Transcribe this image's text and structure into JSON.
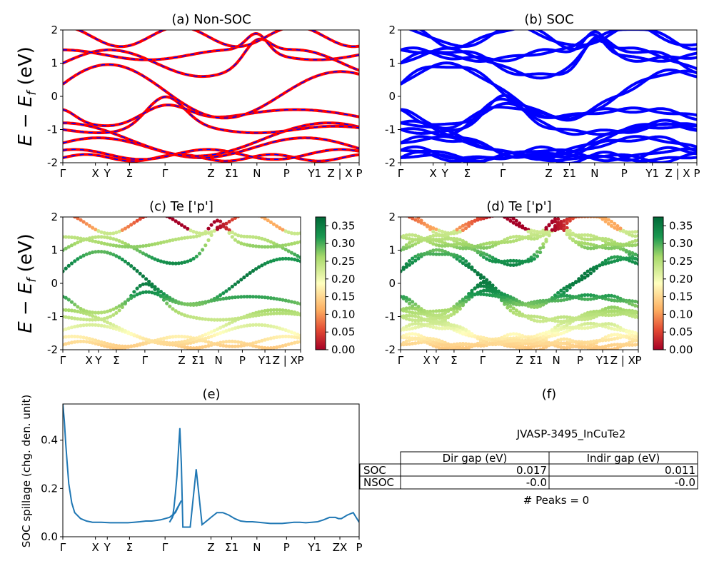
{
  "chart_data": [
    {
      "id": "a",
      "type": "line",
      "title": "(a) Non-SOC",
      "ylabel": "E − E_f (eV)",
      "ylim": [
        -2,
        2
      ],
      "yticks": [
        "-2",
        "-1",
        "0",
        "1",
        "2"
      ],
      "kpoints": [
        "Γ",
        "X",
        "Y",
        "Σ",
        "Γ",
        "Z",
        "Σ1",
        "N",
        "P",
        "Y1",
        "Z | X",
        "P"
      ],
      "series_colors": [
        "#ff0000",
        "#0000ff"
      ],
      "series_style": "red solid with blue dashes (overlapping)"
    },
    {
      "id": "b",
      "type": "line",
      "title": "(b) SOC",
      "ylim": [
        -2,
        2
      ],
      "yticks": [
        "-2",
        "-1",
        "0",
        "1",
        "2"
      ],
      "kpoints": [
        "Γ",
        "X",
        "Y",
        "Σ",
        "Γ",
        "Z",
        "Σ1",
        "N",
        "P",
        "Y1",
        "Z | X",
        "P"
      ],
      "series_colors": [
        "#0000ff"
      ]
    },
    {
      "id": "c",
      "type": "scatter",
      "title": "(c)  Te ['p']",
      "ylabel": "E − E_f (eV)",
      "ylim": [
        -2,
        2
      ],
      "yticks": [
        "-2",
        "-1",
        "0",
        "1",
        "2"
      ],
      "kpoints": [
        "Γ",
        "X",
        "Y",
        "Σ",
        "Γ",
        "Z",
        "Σ1",
        "N",
        "P",
        "Y1",
        "Z | X",
        "P"
      ],
      "colorbar": {
        "colormap": "RdYlGn",
        "range": [
          0.0,
          0.35
        ],
        "ticks": [
          "0.00",
          "0.05",
          "0.10",
          "0.15",
          "0.20",
          "0.25",
          "0.30",
          "0.35"
        ]
      }
    },
    {
      "id": "d",
      "type": "scatter",
      "title": "(d) Te ['p']",
      "ylim": [
        -2,
        2
      ],
      "yticks": [
        "-2",
        "-1",
        "0",
        "1",
        "2"
      ],
      "kpoints": [
        "Γ",
        "X",
        "Y",
        "Σ",
        "Γ",
        "Z",
        "Σ1",
        "N",
        "P",
        "Y1",
        "Z | X",
        "P"
      ],
      "colorbar": {
        "colormap": "RdYlGn",
        "range": [
          0.0,
          0.35
        ],
        "ticks": [
          "0.00",
          "0.05",
          "0.10",
          "0.15",
          "0.20",
          "0.25",
          "0.30",
          "0.35"
        ]
      }
    },
    {
      "id": "e",
      "type": "line",
      "title": "(e)",
      "ylabel": "SOC spillage (chg. den. unit)",
      "ylim": [
        0,
        0.55
      ],
      "yticks": [
        "0.0",
        "0.2",
        "0.4"
      ],
      "kpoints": [
        "Γ",
        "X",
        "Y",
        "Σ",
        "Γ",
        "Z",
        "Σ1",
        "N",
        "P",
        "Y1",
        "ZX",
        "P"
      ],
      "color": "#1f77b4",
      "x": [
        0,
        0.005,
        0.01,
        0.015,
        0.02,
        0.03,
        0.04,
        0.06,
        0.08,
        0.1,
        0.13,
        0.16,
        0.19,
        0.22,
        0.24,
        0.26,
        0.28,
        0.3,
        0.33,
        0.36,
        0.38,
        0.4,
        0.36,
        0.37,
        0.375,
        0.38,
        0.385,
        0.39,
        0.395,
        0.4,
        0.405,
        0.41,
        0.43,
        0.45,
        0.47,
        0.49,
        0.5,
        0.51,
        0.52,
        0.54,
        0.56,
        0.58,
        0.6,
        0.62,
        0.64,
        0.66,
        0.7,
        0.74,
        0.78,
        0.8,
        0.82,
        0.84,
        0.86,
        0.88,
        0.9,
        0.92,
        0.93,
        0.94,
        0.96,
        0.98,
        1.0
      ],
      "values": [
        0.55,
        0.48,
        0.38,
        0.3,
        0.22,
        0.14,
        0.1,
        0.075,
        0.065,
        0.06,
        0.06,
        0.058,
        0.058,
        0.058,
        0.06,
        0.062,
        0.065,
        0.065,
        0.07,
        0.08,
        0.1,
        0.15,
        0.06,
        0.08,
        0.12,
        0.18,
        0.25,
        0.35,
        0.45,
        0.3,
        0.04,
        0.04,
        0.04,
        0.28,
        0.05,
        0.07,
        0.08,
        0.09,
        0.1,
        0.1,
        0.09,
        0.075,
        0.065,
        0.062,
        0.062,
        0.06,
        0.055,
        0.055,
        0.06,
        0.06,
        0.058,
        0.06,
        0.062,
        0.07,
        0.08,
        0.08,
        0.075,
        0.075,
        0.09,
        0.1,
        0.06
      ]
    }
  ],
  "panel_f": {
    "title": "(f)",
    "material": "JVASP-3495_InCuTe2",
    "columns": [
      "Dir gap (eV)",
      "Indir gap (eV)"
    ],
    "rows": [
      {
        "label": "SOC",
        "dir": "0.017",
        "indir": "0.011"
      },
      {
        "label": "NSOC",
        "dir": "-0.0",
        "indir": "-0.0"
      }
    ],
    "peaks": "# Peaks = 0"
  }
}
